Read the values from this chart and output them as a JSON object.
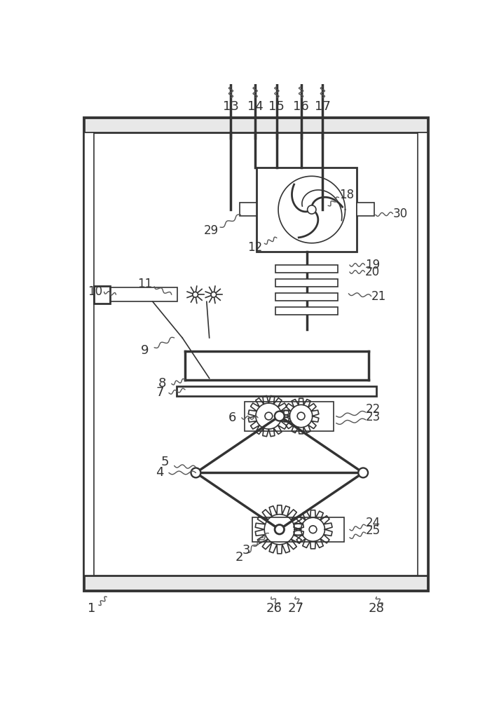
{
  "bg_color": "#ffffff",
  "line_color": "#333333",
  "label_color": "#333333",
  "fig_width": 7.12,
  "fig_height": 10.0,
  "dpi": 100
}
